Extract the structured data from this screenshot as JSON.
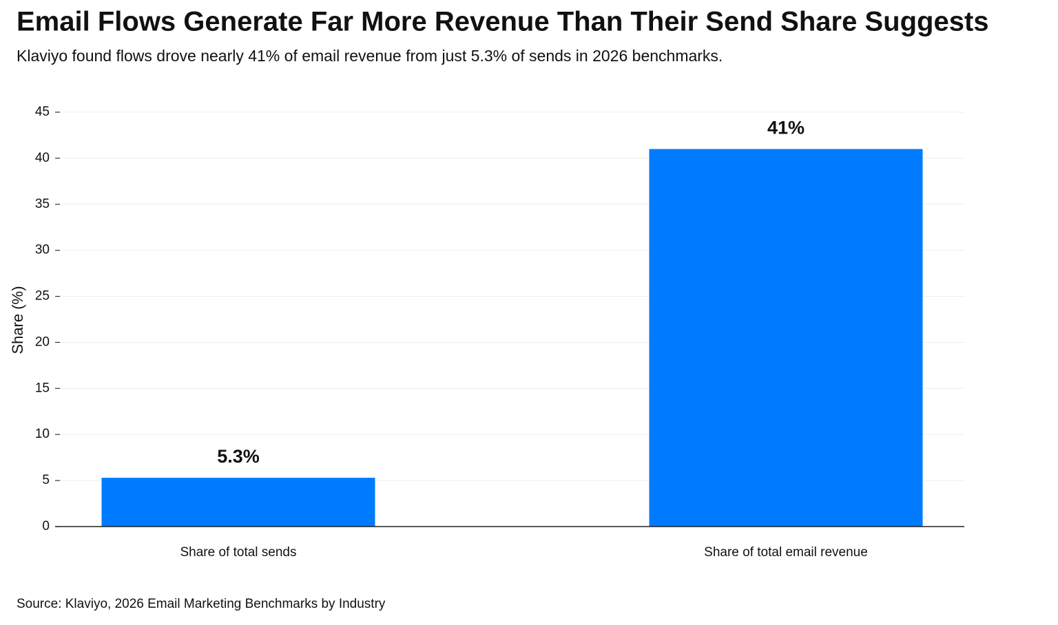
{
  "chart_data": {
    "type": "bar",
    "title": "Email Flows Generate Far More Revenue Than Their Send Share Suggests",
    "subtitle": "Klaviyo found flows drove nearly 41% of email revenue from just 5.3% of sends in 2026 benchmarks.",
    "y_label": "Share (%)",
    "categories": [
      "Share of total sends",
      "Share of total email revenue"
    ],
    "values": [
      5.3,
      41
    ],
    "value_labels": [
      "5.3%",
      "41%"
    ],
    "color": "#007bff",
    "ylim": [
      0,
      45
    ],
    "yticks": [
      0,
      5,
      10,
      15,
      20,
      25,
      30,
      35,
      40,
      45
    ],
    "grid": true,
    "source": "Source: Klaviyo, 2026 Email Marketing Benchmarks by Industry"
  }
}
